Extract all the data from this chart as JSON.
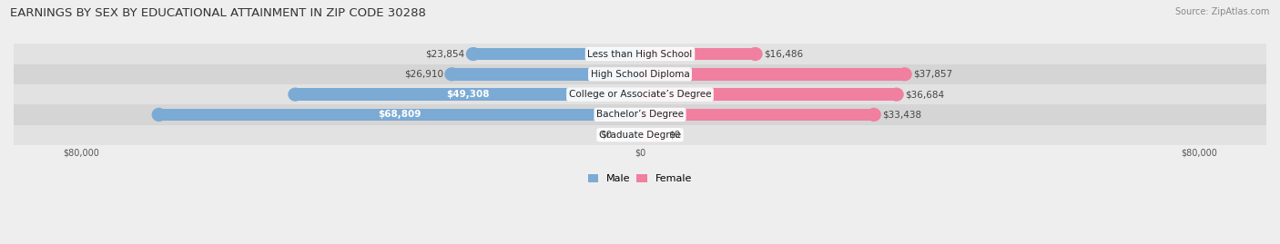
{
  "title": "EARNINGS BY SEX BY EDUCATIONAL ATTAINMENT IN ZIP CODE 30288",
  "source": "Source: ZipAtlas.com",
  "categories": [
    "Less than High School",
    "High School Diploma",
    "College or Associate’s Degree",
    "Bachelor’s Degree",
    "Graduate Degree"
  ],
  "male_values": [
    23854,
    26910,
    49308,
    68809,
    0
  ],
  "female_values": [
    16486,
    37857,
    36684,
    33438,
    0
  ],
  "male_labels": [
    "$23,854",
    "$26,910",
    "$49,308",
    "$68,809",
    "$0"
  ],
  "female_labels": [
    "$16,486",
    "$37,857",
    "$36,684",
    "$33,438",
    "$0"
  ],
  "male_color": "#7baad4",
  "female_color": "#f07fa0",
  "male_color_light": "#b0c8e6",
  "female_color_light": "#f5b0c5",
  "axis_max": 80000,
  "background_color": "#eeeeee",
  "row_colors": [
    "#e8e8e8",
    "#d8d8d8"
  ],
  "title_fontsize": 9.5,
  "source_fontsize": 7,
  "label_fontsize": 7.5,
  "category_fontsize": 7.5,
  "axis_fontsize": 7,
  "legend_fontsize": 8
}
